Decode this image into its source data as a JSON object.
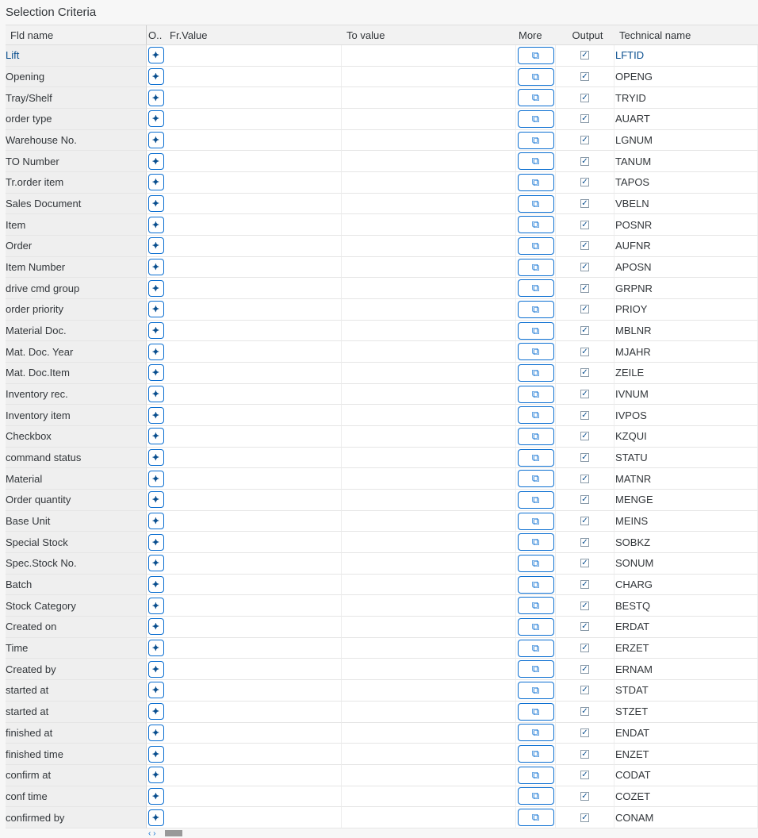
{
  "title": "Selection Criteria",
  "headers": {
    "fld_name": "Fld name",
    "option": "O..",
    "from_value": "Fr.Value",
    "to_value": "To value",
    "more": "More",
    "output": "Output",
    "technical_name": "Technical name"
  },
  "icons": {
    "option": "selection-option-icon",
    "more": "multiple-selection-icon",
    "scroll_left": "‹",
    "scroll_right": "›"
  },
  "accent_color": "#0a6ed1",
  "rows": [
    {
      "name": "Lift",
      "tech": "LFTID",
      "selected": true
    },
    {
      "name": "Opening",
      "tech": "OPENG"
    },
    {
      "name": "Tray/Shelf",
      "tech": "TRYID"
    },
    {
      "name": "order type",
      "tech": "AUART"
    },
    {
      "name": "Warehouse No.",
      "tech": "LGNUM"
    },
    {
      "name": "TO Number",
      "tech": "TANUM"
    },
    {
      "name": "Tr.order item",
      "tech": "TAPOS"
    },
    {
      "name": "Sales Document",
      "tech": "VBELN"
    },
    {
      "name": "Item",
      "tech": "POSNR"
    },
    {
      "name": "Order",
      "tech": "AUFNR"
    },
    {
      "name": "Item Number",
      "tech": "APOSN"
    },
    {
      "name": "drive cmd group",
      "tech": "GRPNR"
    },
    {
      "name": "order priority",
      "tech": "PRIOY"
    },
    {
      "name": "Material Doc.",
      "tech": "MBLNR"
    },
    {
      "name": "Mat. Doc. Year",
      "tech": "MJAHR"
    },
    {
      "name": "Mat. Doc.Item",
      "tech": "ZEILE"
    },
    {
      "name": "Inventory rec.",
      "tech": "IVNUM"
    },
    {
      "name": "Inventory item",
      "tech": "IVPOS"
    },
    {
      "name": "Checkbox",
      "tech": "KZQUI"
    },
    {
      "name": "command status",
      "tech": "STATU"
    },
    {
      "name": "Material",
      "tech": "MATNR"
    },
    {
      "name": "Order quantity",
      "tech": "MENGE"
    },
    {
      "name": "Base Unit",
      "tech": "MEINS"
    },
    {
      "name": "Special Stock",
      "tech": "SOBKZ"
    },
    {
      "name": "Spec.Stock No.",
      "tech": "SONUM"
    },
    {
      "name": "Batch",
      "tech": "CHARG"
    },
    {
      "name": "Stock Category",
      "tech": "BESTQ"
    },
    {
      "name": "Created on",
      "tech": "ERDAT"
    },
    {
      "name": "Time",
      "tech": "ERZET"
    },
    {
      "name": "Created by",
      "tech": "ERNAM"
    },
    {
      "name": "started at",
      "tech": "STDAT"
    },
    {
      "name": "started at",
      "tech": "STZET"
    },
    {
      "name": "finished at",
      "tech": "ENDAT"
    },
    {
      "name": "finished time",
      "tech": "ENZET"
    },
    {
      "name": "confirm at",
      "tech": "CODAT"
    },
    {
      "name": "conf time",
      "tech": "COZET"
    },
    {
      "name": "confirmed by",
      "tech": "CONAM"
    }
  ],
  "output_checked": true,
  "from_value": "",
  "to_value": ""
}
